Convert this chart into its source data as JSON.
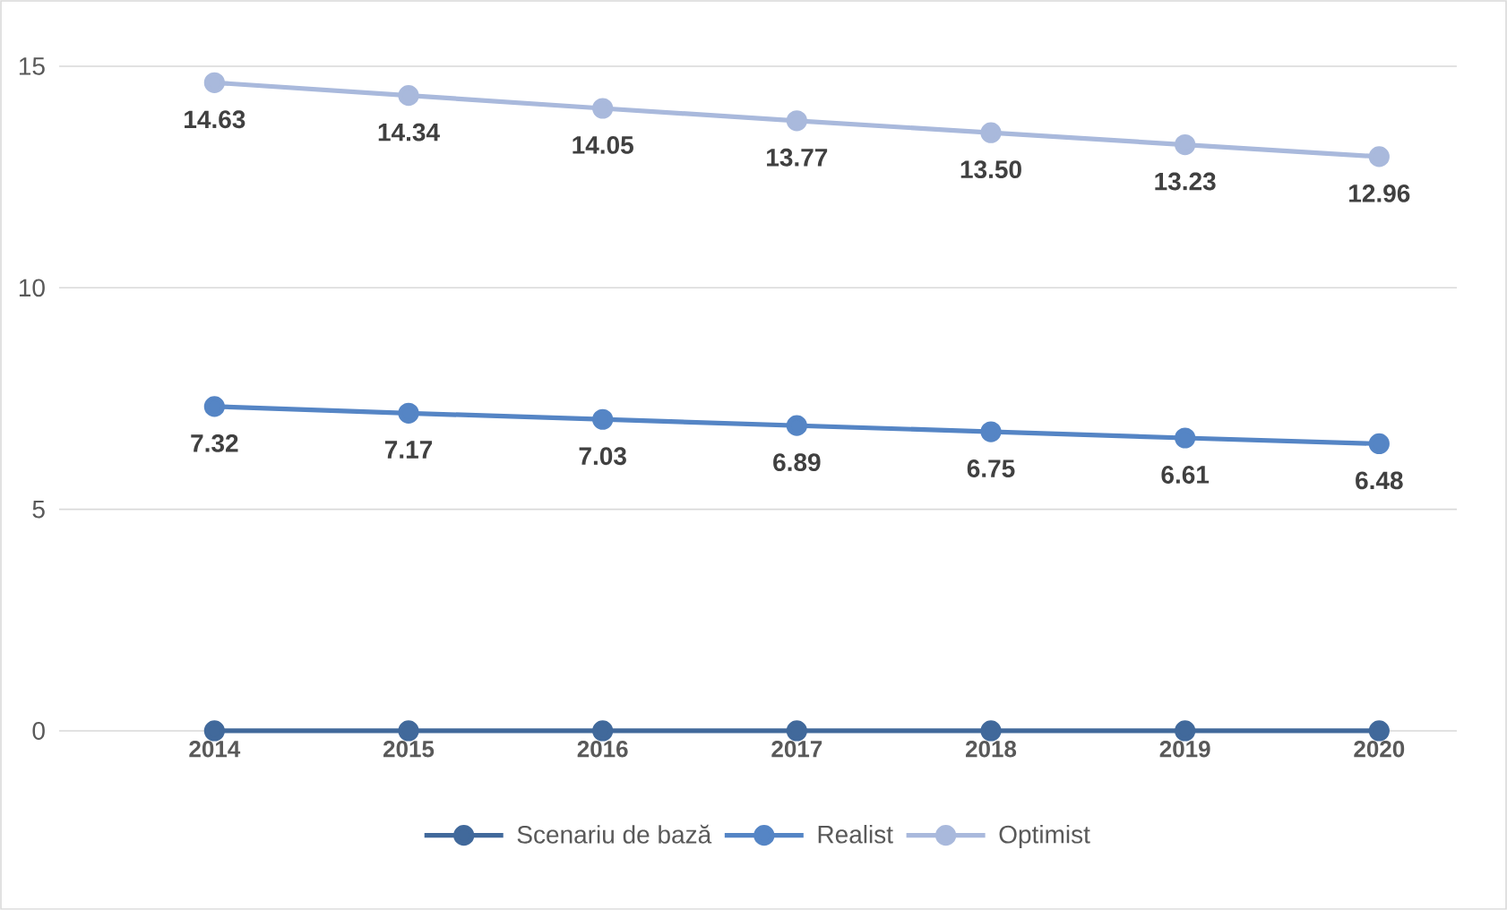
{
  "chart_data": {
    "type": "line",
    "categories": [
      "2014",
      "2015",
      "2016",
      "2017",
      "2018",
      "2019",
      "2020"
    ],
    "series": [
      {
        "name": "Scenariu de bază",
        "color": "#41699b",
        "values": [
          0,
          0,
          0,
          0,
          0,
          0,
          0
        ]
      },
      {
        "name": "Realist",
        "color": "#5585c5",
        "values": [
          7.32,
          7.17,
          7.03,
          6.89,
          6.75,
          6.61,
          6.48
        ],
        "value_labels": [
          "7.32",
          "7.17",
          "7.03",
          "6.89",
          "6.75",
          "6.61",
          "6.48"
        ]
      },
      {
        "name": "Optimist",
        "color": "#a9b9dc",
        "values": [
          14.63,
          14.34,
          14.05,
          13.77,
          13.5,
          13.23,
          12.96
        ],
        "value_labels": [
          "14.63",
          "14.34",
          "14.05",
          "13.77",
          "13.50",
          "13.23",
          "12.96"
        ]
      }
    ],
    "ylim": [
      0,
      15
    ],
    "yticks": [
      0,
      5,
      10,
      15
    ],
    "grid": "y",
    "legend": "bottom",
    "marker": "circle",
    "line_style": "solid"
  }
}
